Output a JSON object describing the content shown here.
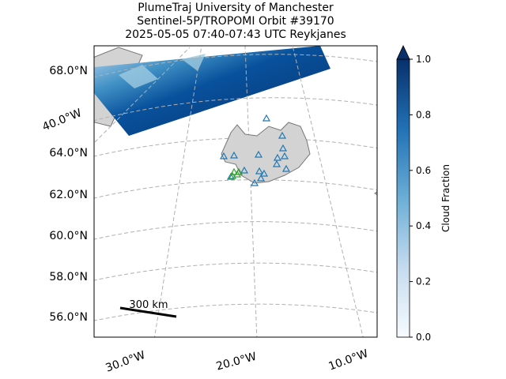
{
  "title": [
    "PlumeTraj    University of Manchester",
    "Sentinel-5P/TROPOMI Orbit #39170",
    "2025-05-05   07:40-07:43 UTC   Reykjanes"
  ],
  "lat_labels": [
    "68.0°N",
    "64.0°N",
    "62.0°N",
    "60.0°N",
    "58.0°N",
    "56.0°N"
  ],
  "lon_labels": [
    "40.0°W",
    "30.0°W",
    "20.0°W",
    "10.0°W"
  ],
  "scale_bar": "300 km",
  "colorbar": {
    "label": "Cloud Fraction",
    "lim": [
      0,
      1
    ],
    "ticks": [
      {
        "value": 0,
        "label": "0.0"
      },
      {
        "value": 0.2,
        "label": "0.2"
      },
      {
        "value": 0.4,
        "label": "0.4"
      },
      {
        "value": 0.6,
        "label": "0.6"
      },
      {
        "value": 0.8,
        "label": "0.8"
      },
      {
        "value": 1,
        "label": "1.0"
      }
    ],
    "colors": [
      "#f7fbff",
      "#c6dbef",
      "#6baed6",
      "#2171b5",
      "#08306b"
    ]
  }
}
